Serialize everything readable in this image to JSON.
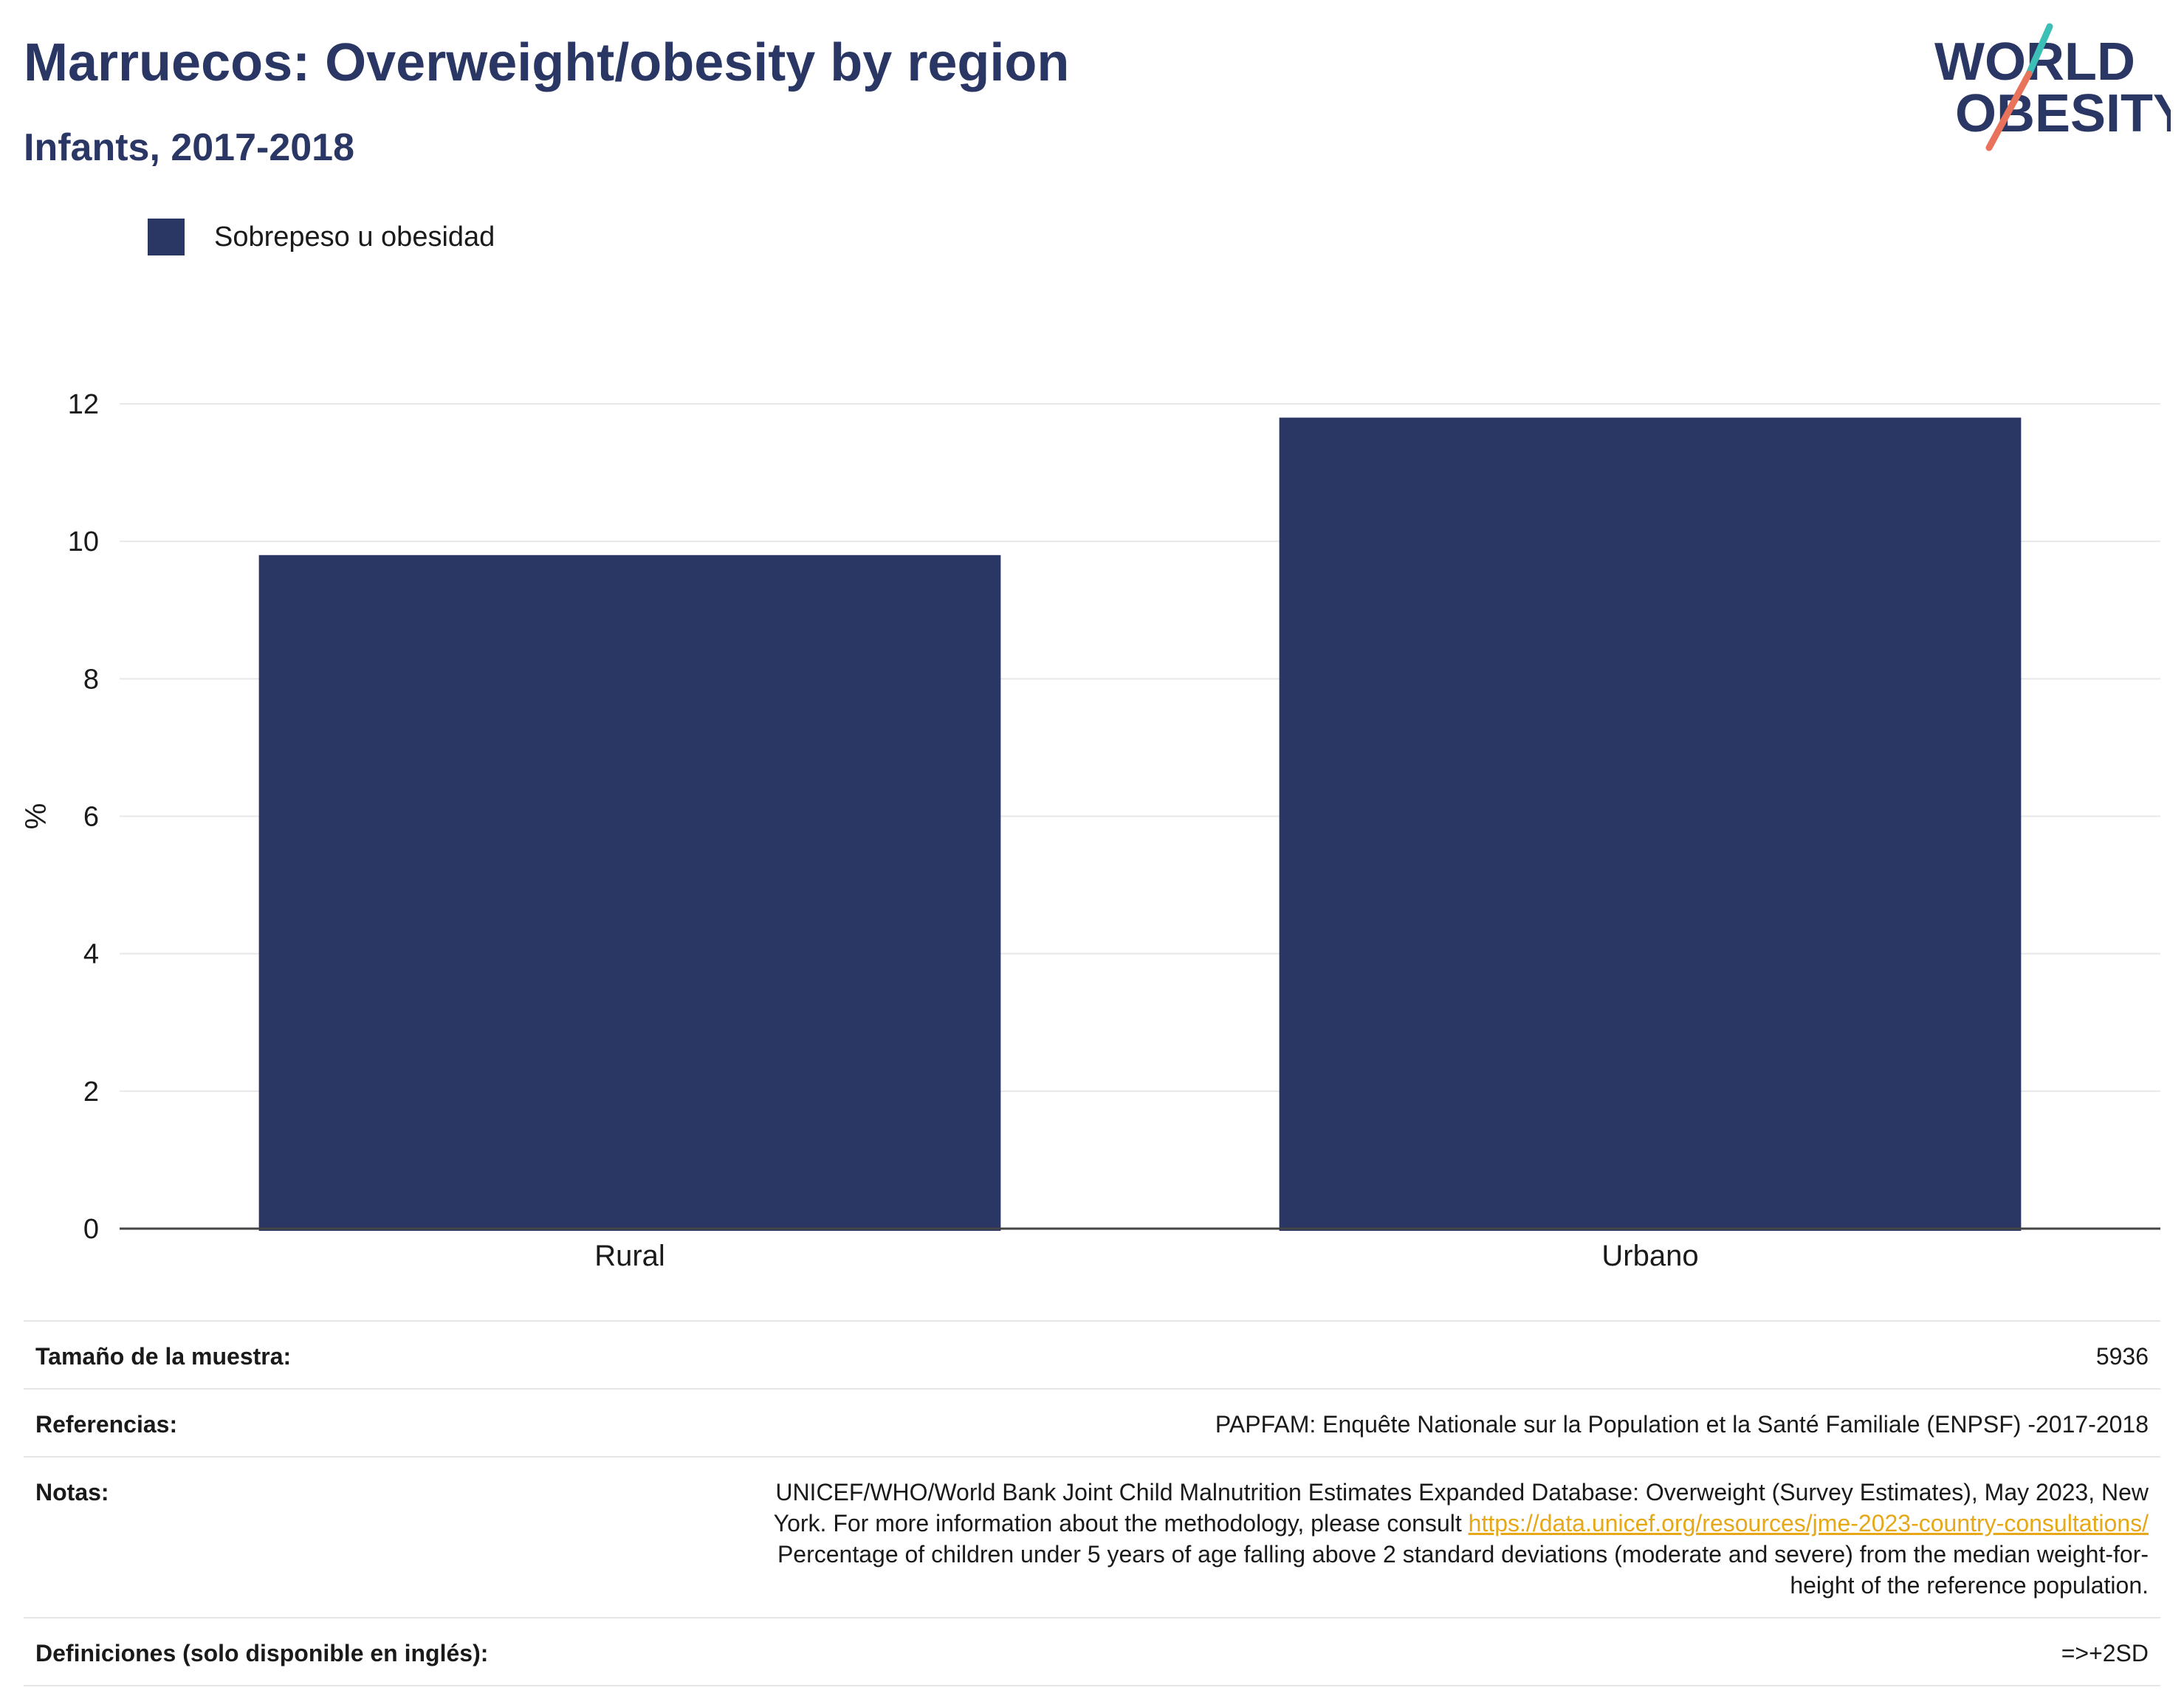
{
  "header": {
    "title": "Marruecos: Overweight/obesity by region",
    "subtitle": "Infants, 2017-2018"
  },
  "logo": {
    "line1": "WORLD",
    "line2": "OBESITY",
    "colors": {
      "navy": "#2a3663",
      "teal": "#3cbfb7",
      "coral": "#e8735a"
    }
  },
  "legend": {
    "label": "Sobrepeso u obesidad",
    "color": "#2a3663"
  },
  "chart_data": {
    "type": "bar",
    "categories": [
      "Rural",
      "Urbano"
    ],
    "series": [
      {
        "name": "Sobrepeso u obesidad",
        "values": [
          9.8,
          11.8
        ],
        "color": "#2a3663"
      }
    ],
    "ylabel": "%",
    "ylim": [
      0,
      12
    ],
    "yticks": [
      0,
      2,
      4,
      6,
      8,
      10,
      12
    ],
    "grid": true,
    "legend_position": "top-left"
  },
  "info_table": {
    "sample_size_label": "Tamaño de la muestra:",
    "sample_size_value": "5936",
    "references_label": "Referencias:",
    "references_value": "PAPFAM: Enquête Nationale sur la Population et la Santé Familiale (ENPSF) -2017-2018",
    "notes_label": "Notas:",
    "notes_line1": "UNICEF/WHO/World Bank Joint Child Malnutrition Estimates Expanded Database: Overweight (Survey Estimates), May 2023, New",
    "notes_line2_prefix": "York. For more information about the methodology, please consult ",
    "notes_link": "https://data.unicef.org/resources/jme-2023-country-consultations/",
    "notes_line3": "Percentage of children under 5 years of age falling above 2 standard deviations (moderate and severe) from the median weight-for-",
    "notes_line4": "height of the reference population.",
    "definitions_label": "Definiciones (solo disponible en inglés):",
    "definitions_value": "=>+2SD"
  }
}
